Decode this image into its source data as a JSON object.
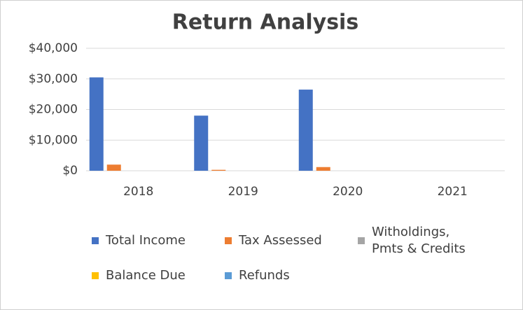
{
  "chart_data": {
    "type": "bar",
    "title": "Return Analysis",
    "categories": [
      "2018",
      "2019",
      "2020",
      "2021"
    ],
    "series": [
      {
        "name": "Total Income",
        "color": "#4472c4",
        "values": [
          30500,
          18000,
          26500,
          0
        ]
      },
      {
        "name": "Tax Assessed",
        "color": "#ed7d31",
        "values": [
          2000,
          300,
          1200,
          0
        ]
      },
      {
        "name": "Witholdings, Pmts & Credits",
        "color": "#a5a5a5",
        "values": [
          0,
          0,
          0,
          0
        ]
      },
      {
        "name": "Balance Due",
        "color": "#ffc000",
        "values": [
          0,
          0,
          0,
          0
        ]
      },
      {
        "name": "Refunds",
        "color": "#5b9bd5",
        "values": [
          0,
          0,
          0,
          0
        ]
      }
    ],
    "ylim": [
      0,
      40000
    ],
    "yticks": [
      {
        "value": 0,
        "label": "$0"
      },
      {
        "value": 10000,
        "label": "$10,000"
      },
      {
        "value": 20000,
        "label": "$20,000"
      },
      {
        "value": 30000,
        "label": "$30,000"
      },
      {
        "value": 40000,
        "label": "$40,000"
      }
    ],
    "grid": true,
    "legend": "bottom"
  }
}
